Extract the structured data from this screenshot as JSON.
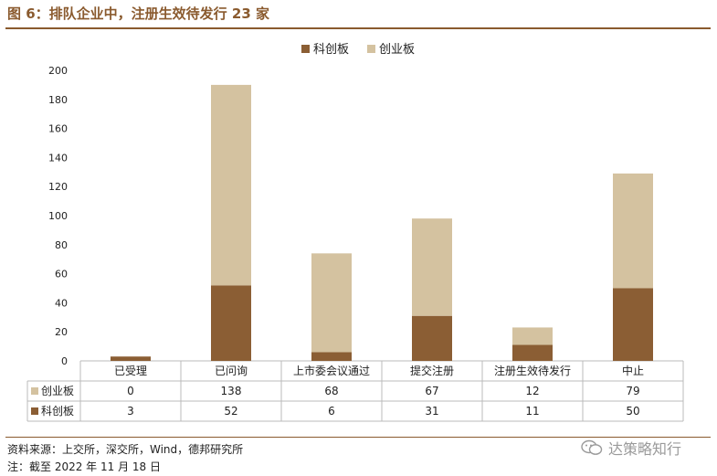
{
  "header": {
    "title": "图 6：排队企业中，注册生效待发行 23 家"
  },
  "chart_data": {
    "type": "bar",
    "stacked": true,
    "categories": [
      "已受理",
      "已问询",
      "上市委会议通过",
      "提交注册",
      "注册生效待发行",
      "中止"
    ],
    "series": [
      {
        "name": "科创板",
        "values": [
          3,
          52,
          6,
          31,
          11,
          50
        ],
        "color": "#8B5E34"
      },
      {
        "name": "创业板",
        "values": [
          0,
          138,
          68,
          67,
          12,
          79
        ],
        "color": "#D4C2A0"
      }
    ],
    "ylim": [
      0,
      200
    ],
    "yticks": [
      0,
      20,
      40,
      60,
      80,
      100,
      120,
      140,
      160,
      180,
      200
    ],
    "grid": false,
    "legend_position": "top-center",
    "table_rows": [
      {
        "name": "创业板",
        "values": [
          "0",
          "138",
          "68",
          "67",
          "12",
          "79"
        ]
      },
      {
        "name": "科创板",
        "values": [
          "3",
          "52",
          "6",
          "31",
          "11",
          "50"
        ]
      }
    ]
  },
  "footer": {
    "source": "资料来源：上交所，深交所，Wind，德邦研究所",
    "note": "注：截至 2022 年 11 月 18 日",
    "watermark": "达策略知行"
  },
  "icons": {
    "watermark_icon": "wechat-icon"
  }
}
